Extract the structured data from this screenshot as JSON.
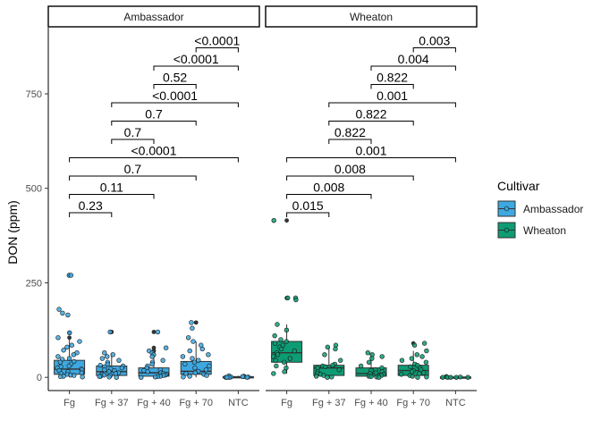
{
  "chart_data": {
    "type": "box",
    "ylabel": "DON (ppm)",
    "xlabel": "",
    "ylim": [
      -35,
      925
    ],
    "yticks": [
      0,
      250,
      500,
      750
    ],
    "grid": false,
    "legend_position": "right",
    "legend": {
      "title": "Cultivar",
      "entries": [
        {
          "name": "Ambassador",
          "color": "#3EA8E0"
        },
        {
          "name": "Wheaton",
          "color": "#0E9C74"
        }
      ]
    },
    "panels": [
      {
        "title": "Ambassador",
        "color": "#3EA8E0",
        "categories": [
          "Fg",
          "Fg + 37",
          "Fg + 40",
          "Fg + 70",
          "NTC"
        ],
        "boxes": [
          {
            "q1": 8,
            "median": 22,
            "q3": 45,
            "whisker_low": 0,
            "whisker_high": 100,
            "outliers": [
              105,
              118,
              270
            ]
          },
          {
            "q1": 5,
            "median": 15,
            "q3": 30,
            "whisker_low": 0,
            "whisker_high": 65,
            "outliers": [
              120
            ]
          },
          {
            "q1": 3,
            "median": 12,
            "q3": 25,
            "whisker_low": 0,
            "whisker_high": 60,
            "outliers": [
              70,
              78,
              120
            ]
          },
          {
            "q1": 8,
            "median": 16,
            "q3": 42,
            "whisker_low": 0,
            "whisker_high": 95,
            "outliers": [
              145
            ]
          },
          {
            "q1": 0,
            "median": 1,
            "q3": 2,
            "whisker_low": 0,
            "whisker_high": 4,
            "outliers": []
          }
        ],
        "points": [
          [
            0,
            270
          ],
          [
            0,
            270
          ],
          [
            0,
            180
          ],
          [
            0,
            170
          ],
          [
            0,
            165
          ],
          [
            0,
            118
          ],
          [
            0,
            105
          ],
          [
            0,
            95
          ],
          [
            0,
            85
          ],
          [
            0,
            80
          ],
          [
            0,
            72
          ],
          [
            0,
            65
          ],
          [
            0,
            60
          ],
          [
            0,
            55
          ],
          [
            0,
            50
          ],
          [
            0,
            48
          ],
          [
            0,
            42
          ],
          [
            0,
            40
          ],
          [
            0,
            35
          ],
          [
            0,
            30
          ],
          [
            0,
            28
          ],
          [
            0,
            25
          ],
          [
            0,
            22
          ],
          [
            0,
            20
          ],
          [
            0,
            18
          ],
          [
            0,
            15
          ],
          [
            0,
            12
          ],
          [
            0,
            10
          ],
          [
            0,
            8
          ],
          [
            0,
            6
          ],
          [
            0,
            5
          ],
          [
            0,
            3
          ],
          [
            0,
            2
          ],
          [
            0,
            1
          ],
          [
            1,
            120
          ],
          [
            1,
            65
          ],
          [
            1,
            60
          ],
          [
            1,
            55
          ],
          [
            1,
            50
          ],
          [
            1,
            45
          ],
          [
            1,
            40
          ],
          [
            1,
            35
          ],
          [
            1,
            32
          ],
          [
            1,
            30
          ],
          [
            1,
            28
          ],
          [
            1,
            25
          ],
          [
            1,
            22
          ],
          [
            1,
            20
          ],
          [
            1,
            18
          ],
          [
            1,
            15
          ],
          [
            1,
            12
          ],
          [
            1,
            10
          ],
          [
            1,
            8
          ],
          [
            1,
            6
          ],
          [
            1,
            5
          ],
          [
            1,
            3
          ],
          [
            1,
            2
          ],
          [
            1,
            1
          ],
          [
            1,
            0
          ],
          [
            2,
            120
          ],
          [
            2,
            78
          ],
          [
            2,
            70
          ],
          [
            2,
            65
          ],
          [
            2,
            60
          ],
          [
            2,
            55
          ],
          [
            2,
            45
          ],
          [
            2,
            40
          ],
          [
            2,
            35
          ],
          [
            2,
            30
          ],
          [
            2,
            25
          ],
          [
            2,
            20
          ],
          [
            2,
            18
          ],
          [
            2,
            15
          ],
          [
            2,
            12
          ],
          [
            2,
            10
          ],
          [
            2,
            8
          ],
          [
            2,
            6
          ],
          [
            2,
            5
          ],
          [
            2,
            3
          ],
          [
            2,
            2
          ],
          [
            2,
            1
          ],
          [
            2,
            0
          ],
          [
            3,
            145
          ],
          [
            3,
            130
          ],
          [
            3,
            105
          ],
          [
            3,
            95
          ],
          [
            3,
            85
          ],
          [
            3,
            75
          ],
          [
            3,
            70
          ],
          [
            3,
            60
          ],
          [
            3,
            55
          ],
          [
            3,
            50
          ],
          [
            3,
            45
          ],
          [
            3,
            40
          ],
          [
            3,
            35
          ],
          [
            3,
            30
          ],
          [
            3,
            25
          ],
          [
            3,
            20
          ],
          [
            3,
            16
          ],
          [
            3,
            12
          ],
          [
            3,
            10
          ],
          [
            3,
            8
          ],
          [
            3,
            5
          ],
          [
            3,
            3
          ],
          [
            3,
            1
          ],
          [
            4,
            4
          ],
          [
            4,
            3
          ],
          [
            4,
            2
          ],
          [
            4,
            2
          ],
          [
            4,
            1
          ],
          [
            4,
            1
          ],
          [
            4,
            0
          ],
          [
            4,
            0
          ],
          [
            4,
            0
          ],
          [
            4,
            0
          ]
        ],
        "comparisons": [
          {
            "from": 0,
            "to": 1,
            "label": "0.23"
          },
          {
            "from": 0,
            "to": 2,
            "label": "0.11"
          },
          {
            "from": 0,
            "to": 3,
            "label": "0.7"
          },
          {
            "from": 0,
            "to": 4,
            "label": "<0.0001"
          },
          {
            "from": 1,
            "to": 2,
            "label": "0.7"
          },
          {
            "from": 1,
            "to": 3,
            "label": "0.7"
          },
          {
            "from": 1,
            "to": 4,
            "label": "<0.0001"
          },
          {
            "from": 2,
            "to": 3,
            "label": "0.52"
          },
          {
            "from": 2,
            "to": 4,
            "label": "<0.0001"
          },
          {
            "from": 3,
            "to": 4,
            "label": "<0.0001"
          }
        ]
      },
      {
        "title": "Wheaton",
        "color": "#0E9C74",
        "categories": [
          "Fg",
          "Fg + 37",
          "Fg + 40",
          "Fg + 70",
          "NTC"
        ],
        "boxes": [
          {
            "q1": 40,
            "median": 65,
            "q3": 95,
            "whisker_low": 10,
            "whisker_high": 140,
            "outliers": [
              210,
              415
            ]
          },
          {
            "q1": 5,
            "median": 25,
            "q3": 32,
            "whisker_low": 0,
            "whisker_high": 80,
            "outliers": []
          },
          {
            "q1": 3,
            "median": 10,
            "q3": 25,
            "whisker_low": 0,
            "whisker_high": 65,
            "outliers": []
          },
          {
            "q1": 5,
            "median": 18,
            "q3": 32,
            "whisker_low": 0,
            "whisker_high": 70,
            "outliers": [
              90
            ]
          },
          {
            "q1": 0,
            "median": 0,
            "q3": 1,
            "whisker_low": 0,
            "whisker_high": 2,
            "outliers": []
          }
        ],
        "points": [
          [
            0,
            415
          ],
          [
            0,
            210
          ],
          [
            0,
            210
          ],
          [
            0,
            205
          ],
          [
            0,
            140
          ],
          [
            0,
            125
          ],
          [
            0,
            110
          ],
          [
            0,
            100
          ],
          [
            0,
            95
          ],
          [
            0,
            90
          ],
          [
            0,
            85
          ],
          [
            0,
            80
          ],
          [
            0,
            75
          ],
          [
            0,
            70
          ],
          [
            0,
            65
          ],
          [
            0,
            60
          ],
          [
            0,
            55
          ],
          [
            0,
            50
          ],
          [
            0,
            45
          ],
          [
            0,
            40
          ],
          [
            0,
            30
          ],
          [
            0,
            25
          ],
          [
            0,
            15
          ],
          [
            0,
            10
          ],
          [
            1,
            85
          ],
          [
            1,
            80
          ],
          [
            1,
            75
          ],
          [
            1,
            60
          ],
          [
            1,
            45
          ],
          [
            1,
            35
          ],
          [
            1,
            32
          ],
          [
            1,
            30
          ],
          [
            1,
            28
          ],
          [
            1,
            25
          ],
          [
            1,
            20
          ],
          [
            1,
            15
          ],
          [
            1,
            10
          ],
          [
            1,
            8
          ],
          [
            1,
            5
          ],
          [
            1,
            3
          ],
          [
            1,
            1
          ],
          [
            1,
            0
          ],
          [
            2,
            65
          ],
          [
            2,
            60
          ],
          [
            2,
            55
          ],
          [
            2,
            50
          ],
          [
            2,
            40
          ],
          [
            2,
            30
          ],
          [
            2,
            25
          ],
          [
            2,
            20
          ],
          [
            2,
            18
          ],
          [
            2,
            15
          ],
          [
            2,
            12
          ],
          [
            2,
            10
          ],
          [
            2,
            8
          ],
          [
            2,
            5
          ],
          [
            2,
            3
          ],
          [
            2,
            2
          ],
          [
            2,
            1
          ],
          [
            2,
            0
          ],
          [
            3,
            90
          ],
          [
            3,
            85
          ],
          [
            3,
            70
          ],
          [
            3,
            60
          ],
          [
            3,
            55
          ],
          [
            3,
            50
          ],
          [
            3,
            45
          ],
          [
            3,
            40
          ],
          [
            3,
            35
          ],
          [
            3,
            32
          ],
          [
            3,
            28
          ],
          [
            3,
            25
          ],
          [
            3,
            20
          ],
          [
            3,
            18
          ],
          [
            3,
            15
          ],
          [
            3,
            12
          ],
          [
            3,
            10
          ],
          [
            3,
            8
          ],
          [
            3,
            5
          ],
          [
            3,
            3
          ],
          [
            3,
            1
          ],
          [
            3,
            0
          ],
          [
            4,
            2
          ],
          [
            4,
            1
          ],
          [
            4,
            1
          ],
          [
            4,
            0
          ],
          [
            4,
            0
          ],
          [
            4,
            0
          ],
          [
            4,
            0
          ],
          [
            4,
            0
          ]
        ],
        "comparisons": [
          {
            "from": 0,
            "to": 1,
            "label": "0.015"
          },
          {
            "from": 0,
            "to": 2,
            "label": "0.008"
          },
          {
            "from": 0,
            "to": 3,
            "label": "0.008"
          },
          {
            "from": 0,
            "to": 4,
            "label": "0.001"
          },
          {
            "from": 1,
            "to": 2,
            "label": "0.822"
          },
          {
            "from": 1,
            "to": 3,
            "label": "0.822"
          },
          {
            "from": 1,
            "to": 4,
            "label": "0.001"
          },
          {
            "from": 2,
            "to": 3,
            "label": "0.822"
          },
          {
            "from": 2,
            "to": 4,
            "label": "0.004"
          },
          {
            "from": 3,
            "to": 4,
            "label": "0.003"
          }
        ]
      }
    ]
  }
}
